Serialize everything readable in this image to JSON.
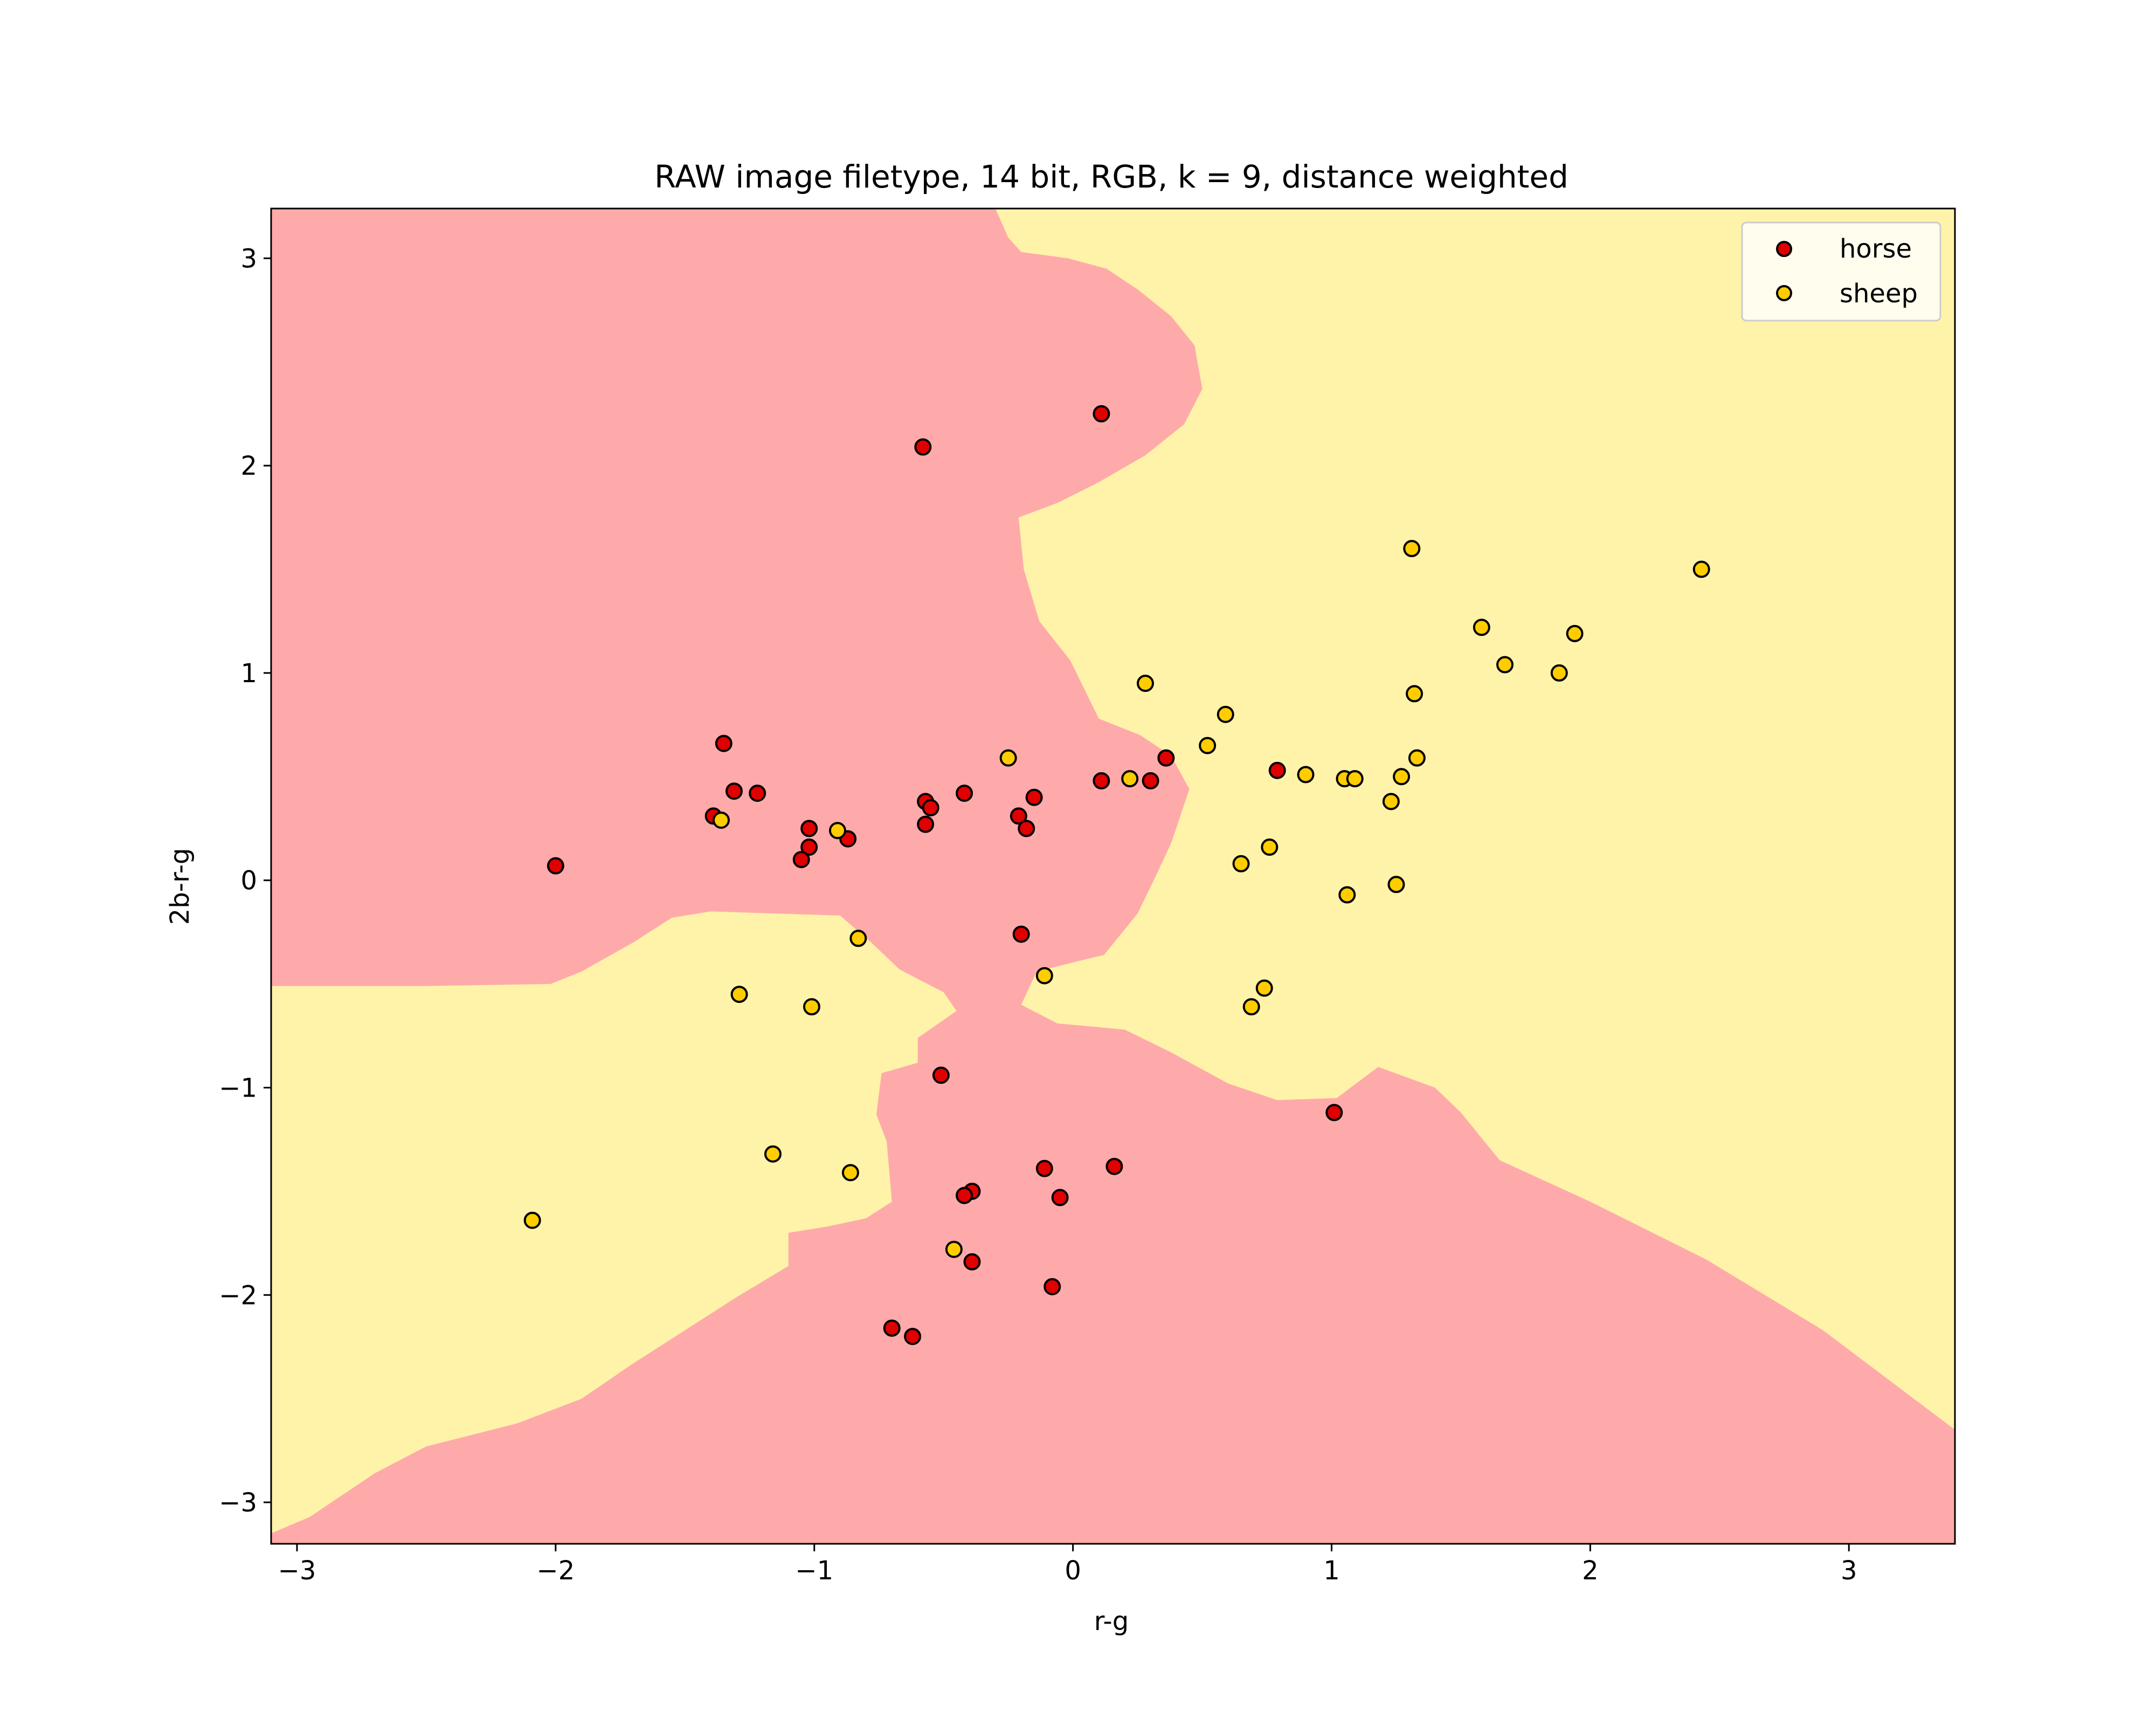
{
  "chart_data": {
    "type": "scatter",
    "title": "RAW image filetype, 14 bit, RGB, k = 9, distance weighted",
    "xlabel": "r-g",
    "ylabel": "2b-r-g",
    "xlim": [
      -3.1,
      3.41
    ],
    "ylim": [
      -3.2,
      3.24
    ],
    "xticks": [
      -3,
      -2,
      -1,
      0,
      1,
      2,
      3
    ],
    "xtick_labels": [
      "−3",
      "−2",
      "−1",
      "0",
      "1",
      "2",
      "3"
    ],
    "yticks": [
      -3,
      -2,
      -1,
      0,
      1,
      2,
      3
    ],
    "ytick_labels": [
      "−3",
      "−2",
      "−1",
      "0",
      "1",
      "2",
      "3"
    ],
    "grid": false,
    "legend_position": "top-right",
    "background_color": "#fff3aa",
    "series": [
      {
        "name": "horse",
        "color": "#e00000",
        "region_color": "#ffaaaa",
        "points": [
          [
            0.11,
            2.25
          ],
          [
            -0.58,
            2.09
          ],
          [
            -2.0,
            0.07
          ],
          [
            -1.35,
            0.66
          ],
          [
            -1.31,
            0.43
          ],
          [
            -1.22,
            0.42
          ],
          [
            -1.39,
            0.31
          ],
          [
            -1.02,
            0.25
          ],
          [
            -1.02,
            0.16
          ],
          [
            -0.87,
            0.2
          ],
          [
            -1.05,
            0.1
          ],
          [
            -0.57,
            0.38
          ],
          [
            -0.55,
            0.35
          ],
          [
            -0.57,
            0.27
          ],
          [
            -0.42,
            0.42
          ],
          [
            -0.15,
            0.4
          ],
          [
            -0.21,
            0.31
          ],
          [
            -0.18,
            0.25
          ],
          [
            0.11,
            0.48
          ],
          [
            0.3,
            0.48
          ],
          [
            0.36,
            0.59
          ],
          [
            0.79,
            0.53
          ],
          [
            -0.2,
            -0.26
          ],
          [
            -0.51,
            -0.94
          ],
          [
            1.01,
            -1.12
          ],
          [
            -0.11,
            -1.39
          ],
          [
            0.16,
            -1.38
          ],
          [
            -0.39,
            -1.5
          ],
          [
            -0.42,
            -1.52
          ],
          [
            -0.05,
            -1.53
          ],
          [
            -0.39,
            -1.84
          ],
          [
            -0.08,
            -1.96
          ],
          [
            -0.7,
            -2.16
          ],
          [
            -0.62,
            -2.2
          ]
        ]
      },
      {
        "name": "sheep",
        "color": "#ffcc00",
        "region_color": "#fff3aa",
        "points": [
          [
            1.31,
            1.6
          ],
          [
            2.43,
            1.5
          ],
          [
            1.58,
            1.22
          ],
          [
            1.94,
            1.19
          ],
          [
            1.67,
            1.04
          ],
          [
            1.88,
            1.0
          ],
          [
            0.28,
            0.95
          ],
          [
            1.32,
            0.9
          ],
          [
            0.59,
            0.8
          ],
          [
            0.52,
            0.65
          ],
          [
            -0.25,
            0.59
          ],
          [
            1.33,
            0.59
          ],
          [
            0.9,
            0.51
          ],
          [
            1.05,
            0.49
          ],
          [
            1.09,
            0.49
          ],
          [
            1.27,
            0.5
          ],
          [
            0.22,
            0.49
          ],
          [
            1.23,
            0.38
          ],
          [
            -1.36,
            0.29
          ],
          [
            -0.91,
            0.24
          ],
          [
            0.76,
            0.16
          ],
          [
            0.65,
            0.08
          ],
          [
            1.25,
            -0.02
          ],
          [
            1.06,
            -0.07
          ],
          [
            -0.83,
            -0.28
          ],
          [
            -0.11,
            -0.46
          ],
          [
            0.74,
            -0.52
          ],
          [
            -1.29,
            -0.55
          ],
          [
            -1.01,
            -0.61
          ],
          [
            0.69,
            -0.61
          ],
          [
            -1.16,
            -1.32
          ],
          [
            -0.86,
            -1.41
          ],
          [
            -2.09,
            -1.64
          ],
          [
            -0.46,
            -1.78
          ]
        ]
      }
    ],
    "decision_region": {
      "horse_polygons": [
        [
          [
            -3.1,
            3.24
          ],
          [
            -0.3,
            3.24
          ],
          [
            -0.25,
            3.1
          ],
          [
            -0.2,
            3.03
          ],
          [
            -0.02,
            3.0
          ],
          [
            0.13,
            2.95
          ],
          [
            0.25,
            2.85
          ],
          [
            0.38,
            2.72
          ],
          [
            0.47,
            2.58
          ],
          [
            0.5,
            2.37
          ],
          [
            0.43,
            2.2
          ],
          [
            0.28,
            2.05
          ],
          [
            0.1,
            1.92
          ],
          [
            -0.06,
            1.82
          ],
          [
            -0.21,
            1.75
          ],
          [
            -0.19,
            1.5
          ],
          [
            -0.13,
            1.25
          ],
          [
            -0.01,
            1.06
          ],
          [
            0.1,
            0.78
          ],
          [
            0.26,
            0.7
          ],
          [
            0.38,
            0.6
          ],
          [
            0.45,
            0.44
          ],
          [
            0.38,
            0.18
          ],
          [
            0.32,
            0.02
          ],
          [
            0.25,
            -0.16
          ],
          [
            0.12,
            -0.36
          ],
          [
            0.02,
            -0.39
          ],
          [
            -0.14,
            -0.44
          ],
          [
            -0.2,
            -0.6
          ],
          [
            -0.06,
            -0.69
          ],
          [
            0.2,
            -0.72
          ],
          [
            0.38,
            -0.83
          ],
          [
            0.6,
            -0.98
          ],
          [
            0.79,
            -1.06
          ],
          [
            1.02,
            -1.05
          ],
          [
            1.18,
            -0.9
          ],
          [
            1.4,
            -1.0
          ],
          [
            1.5,
            -1.12
          ],
          [
            1.65,
            -1.35
          ],
          [
            2.0,
            -1.55
          ],
          [
            2.45,
            -1.83
          ],
          [
            2.9,
            -2.17
          ],
          [
            3.41,
            -2.65
          ],
          [
            3.41,
            -3.2
          ],
          [
            -3.1,
            -3.2
          ],
          [
            -3.1,
            -3.15
          ],
          [
            -2.95,
            -3.07
          ],
          [
            -2.7,
            -2.86
          ],
          [
            -2.5,
            -2.73
          ],
          [
            -2.15,
            -2.62
          ],
          [
            -1.9,
            -2.5
          ],
          [
            -1.7,
            -2.33
          ],
          [
            -1.5,
            -2.17
          ],
          [
            -1.3,
            -2.01
          ],
          [
            -1.1,
            -1.86
          ],
          [
            -1.1,
            -1.7
          ],
          [
            -0.95,
            -1.67
          ],
          [
            -0.8,
            -1.63
          ],
          [
            -0.7,
            -1.55
          ],
          [
            -0.72,
            -1.26
          ],
          [
            -0.76,
            -1.13
          ],
          [
            -0.74,
            -0.93
          ],
          [
            -0.6,
            -0.88
          ],
          [
            -0.6,
            -0.76
          ],
          [
            -0.45,
            -0.63
          ],
          [
            -0.5,
            -0.54
          ],
          [
            -0.67,
            -0.43
          ],
          [
            -0.78,
            -0.3
          ],
          [
            -0.9,
            -0.17
          ],
          [
            -1.15,
            -0.16
          ],
          [
            -1.4,
            -0.15
          ],
          [
            -1.55,
            -0.18
          ],
          [
            -1.7,
            -0.3
          ],
          [
            -1.9,
            -0.44
          ],
          [
            -2.02,
            -0.5
          ],
          [
            -2.5,
            -0.51
          ],
          [
            -3.1,
            -0.51
          ]
        ]
      ]
    }
  },
  "legend": {
    "items": [
      {
        "label": "horse",
        "color": "#e00000"
      },
      {
        "label": "sheep",
        "color": "#ffcc00"
      }
    ]
  }
}
